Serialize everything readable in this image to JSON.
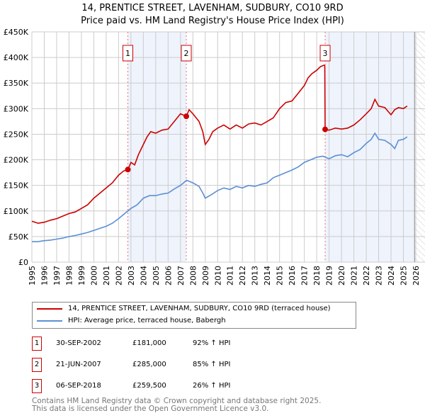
{
  "title_line1": "14, PRENTICE STREET, LAVENHAM, SUDBURY, CO10 9RD",
  "title_line2": "Price paid vs. HM Land Registry's House Price Index (HPI)",
  "chart_data": {
    "type": "line",
    "xlim": [
      1995,
      2026
    ],
    "ylim": [
      0,
      450000
    ],
    "x_ticks": [
      "1995",
      "1996",
      "1997",
      "1998",
      "1999",
      "2000",
      "2001",
      "2002",
      "2003",
      "2004",
      "2005",
      "2006",
      "2007",
      "2008",
      "2009",
      "2010",
      "2011",
      "2012",
      "2013",
      "2014",
      "2015",
      "2016",
      "2017",
      "2018",
      "2019",
      "2020",
      "2021",
      "2022",
      "2023",
      "2024",
      "2025",
      "2026"
    ],
    "y_ticks": [
      {
        "v": 0,
        "label": "£0"
      },
      {
        "v": 50000,
        "label": "£50K"
      },
      {
        "v": 100000,
        "label": "£100K"
      },
      {
        "v": 150000,
        "label": "£150K"
      },
      {
        "v": 200000,
        "label": "£200K"
      },
      {
        "v": 250000,
        "label": "£250K"
      },
      {
        "v": 300000,
        "label": "£300K"
      },
      {
        "v": 350000,
        "label": "£350K"
      },
      {
        "v": 400000,
        "label": "£400K"
      },
      {
        "v": 450000,
        "label": "£450K"
      }
    ],
    "grid": true,
    "series": [
      {
        "name": "14, PRENTICE STREET, LAVENHAM, SUDBURY, CO10 9RD (terraced house)",
        "color": "#cc0000",
        "x": [
          1995,
          1995.5,
          1996,
          1996.5,
          1997,
          1997.5,
          1998,
          1998.5,
          1999,
          1999.5,
          2000,
          2000.5,
          2001,
          2001.5,
          2002,
          2002.4,
          2002.75,
          2003,
          2003.3,
          2003.6,
          2004,
          2004.3,
          2004.6,
          2005,
          2005.5,
          2006,
          2006.5,
          2007,
          2007.47,
          2007.7,
          2008,
          2008.5,
          2008.8,
          2009,
          2009.3,
          2009.6,
          2010,
          2010.5,
          2011,
          2011.5,
          2012,
          2012.5,
          2013,
          2013.5,
          2014,
          2014.5,
          2015,
          2015.5,
          2016,
          2016.5,
          2017,
          2017.3,
          2017.6,
          2018,
          2018.3,
          2018.6,
          2018.65,
          2018.68,
          2019,
          2019.5,
          2020,
          2020.5,
          2021,
          2021.5,
          2022,
          2022.4,
          2022.7,
          2023,
          2023.5,
          2024,
          2024.3,
          2024.6,
          2025,
          2025.3
        ],
        "y": [
          80000,
          76000,
          78000,
          82000,
          85000,
          90000,
          95000,
          98000,
          105000,
          112000,
          125000,
          135000,
          145000,
          155000,
          170000,
          178000,
          181000,
          195000,
          190000,
          210000,
          230000,
          245000,
          255000,
          252000,
          258000,
          260000,
          275000,
          290000,
          285000,
          298000,
          290000,
          275000,
          255000,
          230000,
          240000,
          255000,
          262000,
          268000,
          260000,
          268000,
          262000,
          270000,
          272000,
          268000,
          275000,
          282000,
          300000,
          312000,
          315000,
          330000,
          345000,
          360000,
          368000,
          375000,
          382000,
          385000,
          384000,
          259500,
          258000,
          262000,
          260000,
          262000,
          268000,
          278000,
          290000,
          300000,
          318000,
          305000,
          302000,
          288000,
          298000,
          302000,
          300000,
          305000
        ]
      },
      {
        "name": "HPI: Average price, terraced house, Babergh",
        "color": "#5b8fd4",
        "x": [
          1995,
          1995.5,
          1996,
          1996.5,
          1997,
          1997.5,
          1998,
          1998.5,
          1999,
          1999.5,
          2000,
          2000.5,
          2001,
          2001.5,
          2002,
          2002.5,
          2003,
          2003.5,
          2004,
          2004.5,
          2005,
          2005.5,
          2006,
          2006.5,
          2007,
          2007.5,
          2008,
          2008.5,
          2008.8,
          2009,
          2009.5,
          2010,
          2010.5,
          2011,
          2011.5,
          2012,
          2012.5,
          2013,
          2013.5,
          2014,
          2014.5,
          2015,
          2015.5,
          2016,
          2016.5,
          2017,
          2017.5,
          2018,
          2018.5,
          2019,
          2019.5,
          2020,
          2020.5,
          2021,
          2021.5,
          2022,
          2022.4,
          2022.7,
          2023,
          2023.5,
          2024,
          2024.3,
          2024.6,
          2025,
          2025.3
        ],
        "y": [
          40000,
          40000,
          42000,
          43000,
          45000,
          47000,
          50000,
          52000,
          55000,
          58000,
          62000,
          66000,
          70000,
          76000,
          85000,
          95000,
          105000,
          112000,
          125000,
          130000,
          130000,
          133000,
          135000,
          143000,
          150000,
          160000,
          155000,
          148000,
          135000,
          125000,
          132000,
          140000,
          145000,
          142000,
          148000,
          145000,
          150000,
          148000,
          152000,
          155000,
          165000,
          170000,
          175000,
          180000,
          186000,
          195000,
          200000,
          205000,
          207000,
          202000,
          208000,
          210000,
          206000,
          214000,
          220000,
          232000,
          240000,
          252000,
          240000,
          238000,
          230000,
          222000,
          238000,
          240000,
          245000
        ]
      }
    ],
    "sales": [
      {
        "id": "1",
        "x": 2002.75,
        "y": 181000,
        "date": "30-SEP-2002",
        "price": "£181,000",
        "hpi": "92% ↑ HPI"
      },
      {
        "id": "2",
        "x": 2007.47,
        "y": 285000,
        "date": "21-JUN-2007",
        "price": "£285,000",
        "hpi": "85% ↑ HPI"
      },
      {
        "id": "3",
        "x": 2018.68,
        "y": 259500,
        "date": "06-SEP-2018",
        "price": "£259,500",
        "hpi": "26% ↑ HPI"
      }
    ],
    "forecast_start": 2025.9,
    "legend_placement": "below"
  },
  "legend": {
    "red": "14, PRENTICE STREET, LAVENHAM, SUDBURY, CO10 9RD (terraced house)",
    "blue": "HPI: Average price, terraced house, Babergh"
  },
  "footer": {
    "line1": "Contains HM Land Registry data © Crown copyright and database right 2025.",
    "line2": "This data is licensed under the Open Government Licence v3.0."
  }
}
